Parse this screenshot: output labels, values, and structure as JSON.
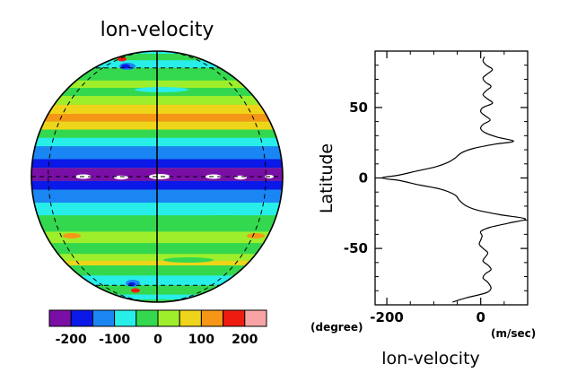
{
  "chart_data": [
    {
      "type": "heatmap",
      "projection": "orthographic globe",
      "title": "lon-velocity",
      "colorbar": {
        "colors": [
          "#7a0fa6",
          "#0a18e8",
          "#1a86f3",
          "#28eeea",
          "#34d84f",
          "#9eee2c",
          "#efd51a",
          "#f59616",
          "#ee1c10",
          "#f8a4a4"
        ],
        "ticks": [
          -200,
          -100,
          0,
          100,
          200
        ],
        "tick_labels": [
          "-200",
          "-100",
          "0",
          "100",
          "200"
        ],
        "range": [
          -250,
          250
        ]
      },
      "bands": [
        {
          "lat": [
            85,
            90
          ],
          "color": "#9eee2c"
        },
        {
          "lat": [
            78,
            85
          ],
          "color": "#28eeea"
        },
        {
          "lat": [
            68,
            78
          ],
          "color": "#34d84f"
        },
        {
          "lat": [
            60,
            68
          ],
          "color": "#28eeea"
        },
        {
          "lat": [
            50,
            60
          ],
          "color": "#34d84f"
        },
        {
          "lat": [
            45,
            50
          ],
          "color": "#9eee2c"
        },
        {
          "lat": [
            40,
            45
          ],
          "color": "#34d84f"
        },
        {
          "lat": [
            35,
            40
          ],
          "color": "#9eee2c"
        },
        {
          "lat": [
            30,
            35
          ],
          "color": "#efd51a"
        },
        {
          "lat": [
            26,
            30
          ],
          "color": "#f59616"
        },
        {
          "lat": [
            22,
            26
          ],
          "color": "#efd51a"
        },
        {
          "lat": [
            18,
            22
          ],
          "color": "#34d84f"
        },
        {
          "lat": [
            14,
            18
          ],
          "color": "#28eeea"
        },
        {
          "lat": [
            8,
            14
          ],
          "color": "#1a86f3"
        },
        {
          "lat": [
            4,
            8
          ],
          "color": "#0a18e8"
        },
        {
          "lat": [
            -2,
            4
          ],
          "color": "#7a0fa6"
        },
        {
          "lat": [
            -6,
            -2
          ],
          "color": "#0a18e8"
        },
        {
          "lat": [
            -12,
            -6
          ],
          "color": "#1a86f3"
        },
        {
          "lat": [
            -18,
            -12
          ],
          "color": "#28eeea"
        },
        {
          "lat": [
            -26,
            -18
          ],
          "color": "#34d84f"
        },
        {
          "lat": [
            -32,
            -26
          ],
          "color": "#9eee2c"
        },
        {
          "lat": [
            -38,
            -32
          ],
          "color": "#34d84f"
        },
        {
          "lat": [
            -42,
            -38
          ],
          "color": "#9eee2c"
        },
        {
          "lat": [
            -45,
            -42
          ],
          "color": "#efd51a"
        },
        {
          "lat": [
            -52,
            -45
          ],
          "color": "#34d84f"
        },
        {
          "lat": [
            -60,
            -52
          ],
          "color": "#28eeea"
        },
        {
          "lat": [
            -70,
            -60
          ],
          "color": "#34d84f"
        },
        {
          "lat": [
            -78,
            -70
          ],
          "color": "#28eeea"
        },
        {
          "lat": [
            -85,
            -78
          ],
          "color": "#34d84f"
        },
        {
          "lat": [
            -90,
            -85
          ],
          "color": "#9eee2c"
        }
      ],
      "graticule": {
        "latitudes": [
          -60,
          60
        ],
        "meridians": [
          -60,
          0,
          60
        ]
      }
    },
    {
      "type": "line",
      "title": "lon-velocity",
      "xlabel": "",
      "ylabel": "Latitude",
      "x_unit": "(m/sec)",
      "y_unit": "(degree)",
      "xlim": [
        -225,
        100
      ],
      "ylim": [
        -90,
        90
      ],
      "xticks": [
        -200,
        0
      ],
      "yticks": [
        -50,
        0,
        50
      ],
      "series": [
        {
          "points": [
            [
              -60,
              -88
            ],
            [
              -30,
              -85
            ],
            [
              -5,
              -83
            ],
            [
              15,
              -81
            ],
            [
              22,
              -78
            ],
            [
              15,
              -74
            ],
            [
              5,
              -71
            ],
            [
              10,
              -68
            ],
            [
              22,
              -65
            ],
            [
              16,
              -62
            ],
            [
              5,
              -59
            ],
            [
              10,
              -56
            ],
            [
              15,
              -53
            ],
            [
              5,
              -50
            ],
            [
              -3,
              -47
            ],
            [
              0,
              -44
            ],
            [
              3,
              -41
            ],
            [
              0,
              -38
            ],
            [
              20,
              -35
            ],
            [
              60,
              -32
            ],
            [
              95,
              -29
            ],
            [
              40,
              -26
            ],
            [
              -5,
              -23
            ],
            [
              -30,
              -20
            ],
            [
              -45,
              -16
            ],
            [
              -55,
              -12
            ],
            [
              -85,
              -8
            ],
            [
              -130,
              -5
            ],
            [
              -170,
              -2
            ],
            [
              -210,
              0
            ],
            [
              -175,
              2
            ],
            [
              -135,
              5
            ],
            [
              -95,
              8
            ],
            [
              -70,
              11
            ],
            [
              -55,
              14
            ],
            [
              -40,
              18
            ],
            [
              -15,
              21
            ],
            [
              30,
              24
            ],
            [
              70,
              26
            ],
            [
              35,
              29
            ],
            [
              10,
              32
            ],
            [
              0,
              35
            ],
            [
              5,
              38
            ],
            [
              20,
              41
            ],
            [
              10,
              44
            ],
            [
              0,
              47
            ],
            [
              5,
              50
            ],
            [
              25,
              53
            ],
            [
              15,
              56
            ],
            [
              5,
              59
            ],
            [
              12,
              62
            ],
            [
              22,
              65
            ],
            [
              10,
              68
            ],
            [
              5,
              71
            ],
            [
              15,
              74
            ],
            [
              25,
              77
            ],
            [
              12,
              80
            ],
            [
              5,
              83
            ],
            [
              8,
              86
            ]
          ]
        }
      ]
    }
  ]
}
